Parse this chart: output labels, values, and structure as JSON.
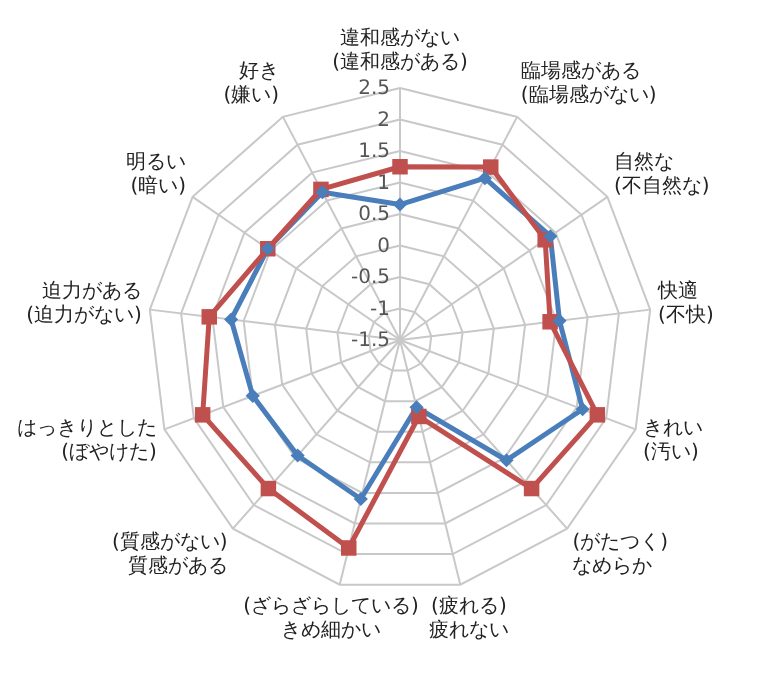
{
  "chart_data": {
    "type": "radar",
    "categories": [
      "違和感がない\n(違和感がある)",
      "臨場感がある\n(臨場感がない)",
      "自然な\n(不自然な)",
      "快適\n(不快)",
      "きれい\n(汚い)",
      "(がたつく)\nなめらか",
      "(疲れる)\n疲れない",
      "(ざらざらしている)\nきめ細かい",
      "(質感がない)\n質感がある",
      "はっきりとした\n(ぼやけた)",
      "迫力がある\n(迫力がない)",
      "明るい\n(暗い)",
      "好き\n(嫌い)"
    ],
    "series": [
      {
        "color": "#4a7ebb",
        "marker": "diamond",
        "values": [
          0.65,
          1.4,
          1.4,
          1.05,
          1.6,
          1.05,
          -0.4,
          1.1,
          0.95,
          1.0,
          1.2,
          1.05,
          1.15
        ]
      },
      {
        "color": "#c0504d",
        "marker": "square",
        "values": [
          1.25,
          1.6,
          1.3,
          0.9,
          1.85,
          1.65,
          -0.25,
          1.9,
          1.65,
          1.85,
          1.55,
          1.05,
          1.2
        ]
      }
    ],
    "ylim": [
      -1.5,
      2.5
    ],
    "yticks": [
      -1.5,
      -1,
      -0.5,
      0,
      0.5,
      1,
      1.5,
      2,
      2.5
    ],
    "grid": true
  }
}
